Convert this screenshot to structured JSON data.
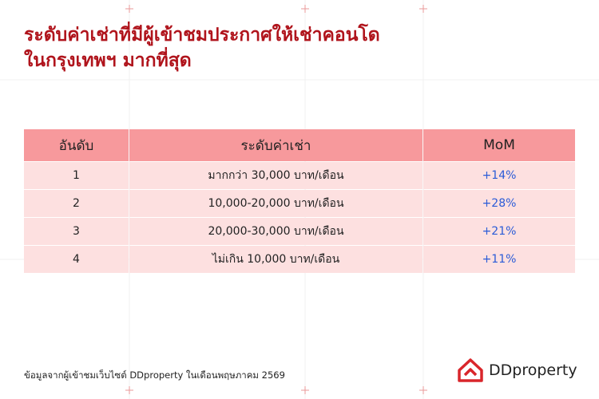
{
  "header": {
    "title_lines": [
      "ระดับค่าเช่าที่มีผู้เข้าชมประกาศให้เช่าคอนโด",
      "ในกรุงเทพฯ มากที่สุด"
    ]
  },
  "table": {
    "columns": [
      "อันดับ",
      "ระดับค่าเช่า",
      "MoM"
    ],
    "rows": [
      [
        "1",
        "มากกว่า 30,000 บาท/เดือน",
        "+14%"
      ],
      [
        "2",
        "10,000-20,000 บาท/เดือน",
        "+28%"
      ],
      [
        "3",
        "20,000-30,000 บาท/เดือน",
        "+21%"
      ],
      [
        "4",
        "ไม่เกิน 10,000 บาท/เดือน",
        "+11%"
      ]
    ]
  },
  "footer": {
    "source": "ข้อมูลจากผู้เข้าชมเว็บไซต์ DDproperty ในเดือนพฤษภาคม 2569",
    "logo": "DDproperty"
  }
}
